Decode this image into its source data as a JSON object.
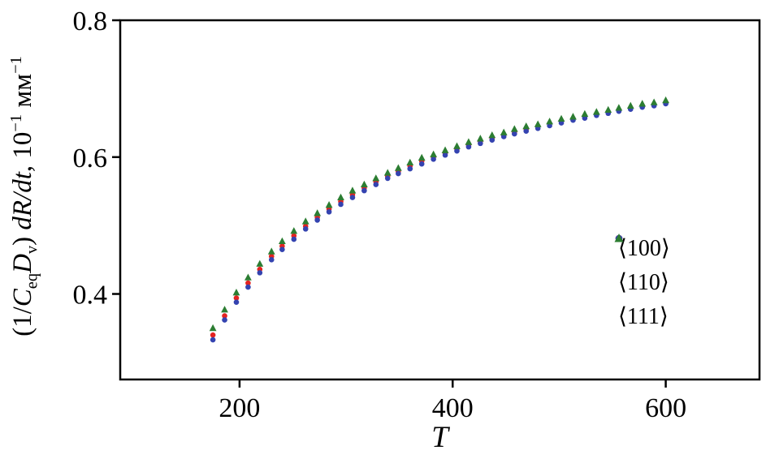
{
  "labels": {
    "ylabel_parts": {
      "open": "(1/",
      "c": "C",
      "c_sub": "eq",
      "d": "D",
      "d_sub": "v",
      "close": ") ",
      "rate": "dR/dt",
      "units_pre": ", 10",
      "exp1": "−1",
      "units": " мм",
      "exp2": "−1"
    }
  },
  "chart_data": {
    "type": "scatter",
    "title": "",
    "xlabel": "T",
    "ylabel": "(1/C_eq D_v) dR/dt, 10^−1 мм^−1",
    "xlim": [
      88,
      688
    ],
    "ylim": [
      0.275,
      0.8
    ],
    "xticks": [
      200,
      400,
      600
    ],
    "xtick_labels": [
      "200",
      "400",
      "600"
    ],
    "yticks": [
      0.4,
      0.6,
      0.8
    ],
    "ytick_labels": [
      "0.4",
      "0.6",
      "0.8"
    ],
    "grid": false,
    "legend_position": "right-center",
    "x": [
      175,
      186,
      197,
      208,
      219,
      230,
      240,
      251,
      262,
      273,
      284,
      295,
      306,
      317,
      328,
      339,
      349,
      360,
      371,
      382,
      393,
      404,
      415,
      426,
      437,
      448,
      458,
      469,
      480,
      491,
      502,
      513,
      524,
      535,
      546,
      556,
      567,
      578,
      589,
      600
    ],
    "series": [
      {
        "name": "⟨100⟩",
        "marker": "circle",
        "color": "#e32320",
        "values": [
          0.34,
          0.368,
          0.394,
          0.416,
          0.436,
          0.455,
          0.47,
          0.485,
          0.499,
          0.512,
          0.524,
          0.535,
          0.545,
          0.555,
          0.564,
          0.572,
          0.579,
          0.587,
          0.594,
          0.6,
          0.606,
          0.612,
          0.618,
          0.623,
          0.628,
          0.632,
          0.637,
          0.641,
          0.645,
          0.649,
          0.653,
          0.656,
          0.66,
          0.663,
          0.666,
          0.669,
          0.672,
          0.675,
          0.677,
          0.68
        ]
      },
      {
        "name": "⟨110⟩",
        "marker": "circle",
        "color": "#3443b0",
        "values": [
          0.333,
          0.362,
          0.388,
          0.41,
          0.431,
          0.45,
          0.465,
          0.48,
          0.495,
          0.508,
          0.52,
          0.531,
          0.541,
          0.551,
          0.56,
          0.569,
          0.576,
          0.583,
          0.59,
          0.597,
          0.603,
          0.609,
          0.615,
          0.62,
          0.625,
          0.63,
          0.634,
          0.638,
          0.642,
          0.646,
          0.65,
          0.654,
          0.657,
          0.661,
          0.664,
          0.667,
          0.67,
          0.673,
          0.675,
          0.678
        ]
      },
      {
        "name": "⟨111⟩",
        "marker": "triangle",
        "color": "#2c7d32",
        "values": [
          0.35,
          0.377,
          0.402,
          0.424,
          0.444,
          0.462,
          0.477,
          0.492,
          0.506,
          0.518,
          0.53,
          0.541,
          0.551,
          0.56,
          0.569,
          0.577,
          0.584,
          0.592,
          0.599,
          0.604,
          0.61,
          0.616,
          0.622,
          0.627,
          0.632,
          0.636,
          0.641,
          0.645,
          0.648,
          0.652,
          0.656,
          0.659,
          0.663,
          0.666,
          0.669,
          0.672,
          0.675,
          0.678,
          0.68,
          0.683
        ]
      }
    ]
  }
}
